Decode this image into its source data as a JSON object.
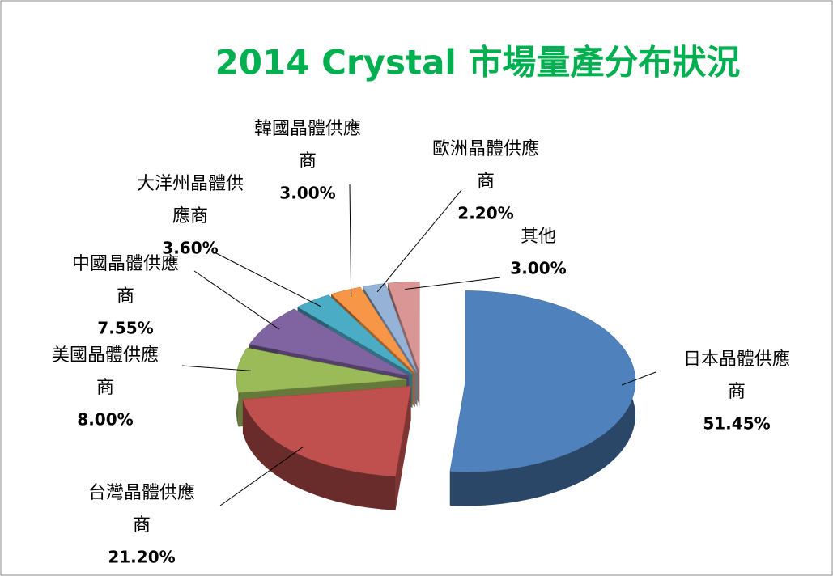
{
  "chart_data": {
    "type": "pie3d",
    "title": "2014 Crystal 市場量產分布狀況",
    "categories": [
      "日本晶體供應商",
      "台灣晶體供應商",
      "美國晶體供應商",
      "中國晶體供應商",
      "大洋州晶體供應商",
      "韓國晶體供應商",
      "歐洲晶體供應商",
      "其他"
    ],
    "values": [
      51.45,
      21.2,
      8.0,
      7.55,
      3.6,
      3.0,
      2.2,
      3.0
    ],
    "value_labels": [
      "51.45%",
      "21.20%",
      "8.00%",
      "7.55%",
      "3.60%",
      "3.00%",
      "2.20%",
      "3.00%"
    ],
    "colors": [
      "#4f81bd",
      "#c0504d",
      "#9bbb59",
      "#8064a2",
      "#4bacc6",
      "#f79646",
      "#95b3d7",
      "#d99694"
    ]
  }
}
